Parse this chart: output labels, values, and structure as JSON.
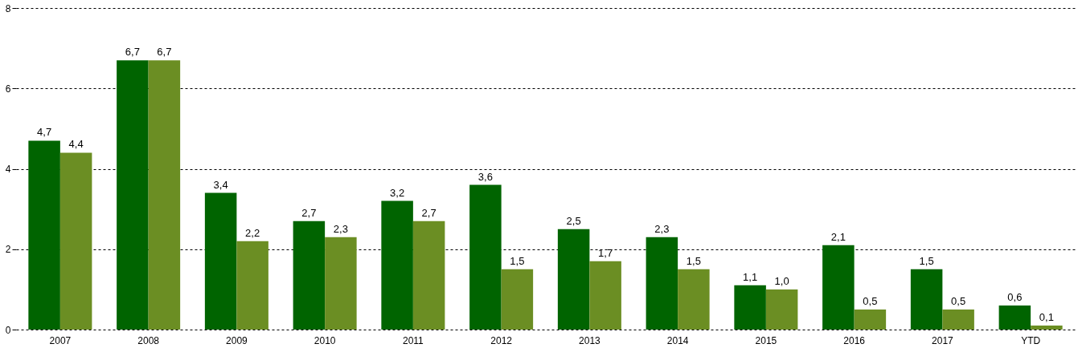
{
  "chart_data": {
    "type": "bar",
    "categories": [
      "2007",
      "2008",
      "2009",
      "2010",
      "2011",
      "2012",
      "2013",
      "2014",
      "2015",
      "2016",
      "2017",
      "YTD"
    ],
    "series": [
      {
        "color": "#006400",
        "values": [
          4.7,
          6.7,
          3.4,
          2.7,
          3.2,
          3.6,
          2.5,
          2.3,
          1.1,
          2.1,
          1.5,
          0.6
        ],
        "value_labels": [
          "4,7",
          "6,7",
          "3,4",
          "2,7",
          "3,2",
          "3,6",
          "2,5",
          "2,3",
          "1,1",
          "2,1",
          "1,5",
          "0,6"
        ]
      },
      {
        "color": "#6b8e23",
        "values": [
          4.4,
          6.7,
          2.2,
          2.3,
          2.7,
          1.5,
          1.7,
          1.5,
          1.0,
          0.5,
          0.5,
          0.1
        ],
        "value_labels": [
          "4,4",
          "6,7",
          "2,2",
          "2,3",
          "2,7",
          "1,5",
          "1,7",
          "1,5",
          "1,0",
          "0,5",
          "0,5",
          "0,1"
        ]
      }
    ],
    "ylim": [
      0,
      8
    ],
    "yticks": [
      0,
      2,
      4,
      6,
      8
    ],
    "grid": "y"
  }
}
